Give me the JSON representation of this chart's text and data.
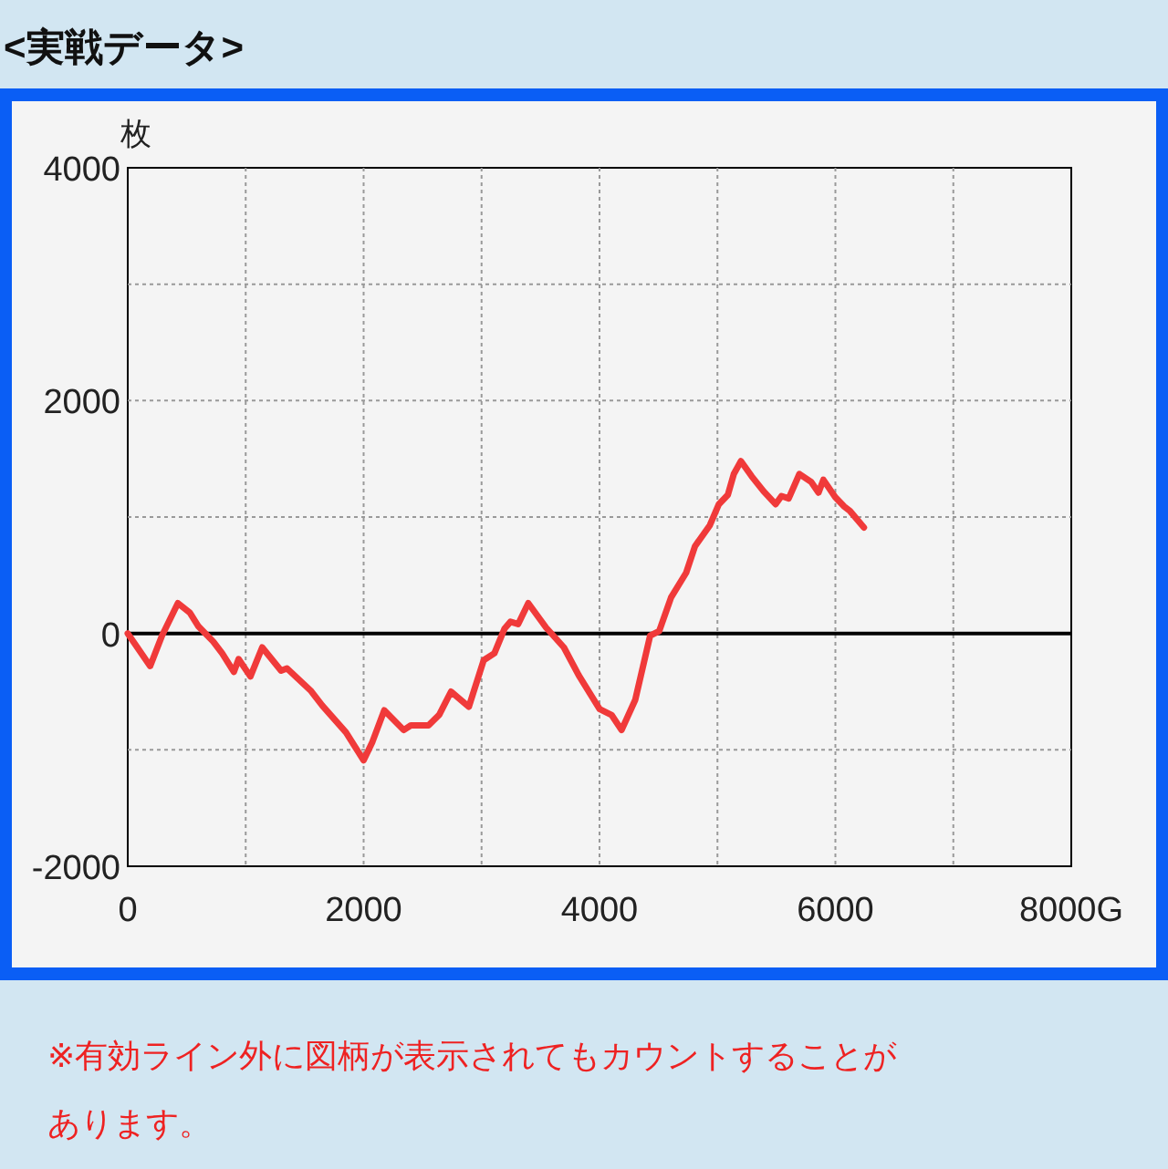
{
  "chart_data": {
    "type": "line",
    "title": "<実戦データ>",
    "ylabel": "枚",
    "annotations": [
      "※有効ライン外に図柄が表示されてもカウントすることがあります。"
    ],
    "x": [
      0,
      190,
      290,
      425,
      525,
      600,
      725,
      800,
      900,
      940,
      1040,
      1140,
      1300,
      1350,
      1550,
      1650,
      1850,
      2000,
      2075,
      2175,
      2340,
      2400,
      2550,
      2640,
      2741,
      2892,
      3018,
      3109,
      3194,
      3245,
      3310,
      3396,
      3547,
      3698,
      3824,
      4001,
      4102,
      4187,
      4303,
      4429,
      4506,
      4607,
      4734,
      4810,
      4936,
      5012,
      5088,
      5139,
      5199,
      5290,
      5392,
      5493,
      5543,
      5604,
      5695,
      5796,
      5857,
      5898,
      5999,
      6075,
      6125,
      6242
    ],
    "series": [
      {
        "color": "#f03a3a",
        "values": [
          0,
          -280,
          -20,
          260,
          180,
          60,
          -70,
          -170,
          -330,
          -220,
          -370,
          -120,
          -320,
          -300,
          -490,
          -620,
          -850,
          -1090,
          -930,
          -660,
          -830,
          -790,
          -790,
          -700,
          -500,
          -630,
          -230,
          -170,
          40,
          100,
          80,
          260,
          50,
          -120,
          -360,
          -650,
          -700,
          -830,
          -570,
          -20,
          20,
          310,
          520,
          750,
          930,
          1110,
          1190,
          1370,
          1480,
          1350,
          1220,
          1110,
          1180,
          1160,
          1370,
          1300,
          1210,
          1320,
          1170,
          1090,
          1050,
          910
        ]
      }
    ],
    "xlim": [
      0,
      8000
    ],
    "ylim": [
      -2000,
      4000
    ],
    "xticks": [
      0,
      {
        "value": 1000,
        "label": null
      },
      2000,
      {
        "value": 3000,
        "label": null
      },
      4000,
      {
        "value": 5000,
        "label": null
      },
      6000,
      {
        "value": 7000,
        "label": null
      },
      {
        "value": 8000,
        "label": "8000G"
      }
    ],
    "yticks": [
      -2000,
      {
        "value": -1000,
        "label": null
      },
      0,
      {
        "value": 1000,
        "label": null
      },
      2000,
      {
        "value": 3000,
        "label": null
      },
      4000
    ],
    "grid": true,
    "ref_lines": [
      {
        "axis": "y",
        "value": 0,
        "color": "#000000"
      }
    ],
    "line_style": "solid"
  }
}
